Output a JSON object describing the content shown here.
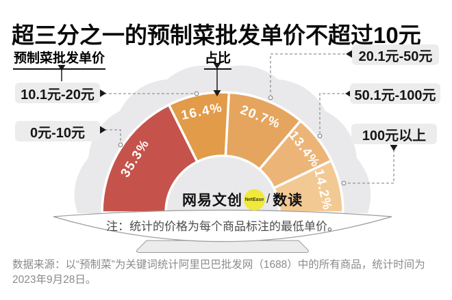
{
  "title": "超三分之一的预制菜批发单价不超过10元",
  "legend": {
    "category_header": "预制菜批发单价",
    "value_header": "占比"
  },
  "chart_data": {
    "type": "pie",
    "variant": "semi-donut",
    "title": "超三分之一的预制菜批发单价不超过10元",
    "category_label": "预制菜批发单价",
    "value_label": "占比",
    "categories": [
      "0元-10元",
      "10.1元-20元",
      "20.1元-50元",
      "50.1元-100元",
      "100元以上"
    ],
    "values": [
      35.3,
      16.4,
      20.7,
      13.4,
      14.2
    ],
    "unit": "%",
    "colors": [
      "#c5534b",
      "#e29b48",
      "#e5a55e",
      "#ecb577",
      "#f3c993"
    ],
    "start_angle_deg": 180,
    "end_angle_deg": 0,
    "legend_position": "callout-boxes"
  },
  "logo": {
    "brand": "网易文创",
    "badge": "NetEase",
    "separator": "/",
    "product": "数读",
    "badge_color": "#f0e83b"
  },
  "note": "注：统计的价格为每个商品标注的最低单价。",
  "source": "数据来源：以“预制菜”为关键词统计阿里巴巴批发网（1688）中的所有商品，统计时间为2023年9月28日。"
}
